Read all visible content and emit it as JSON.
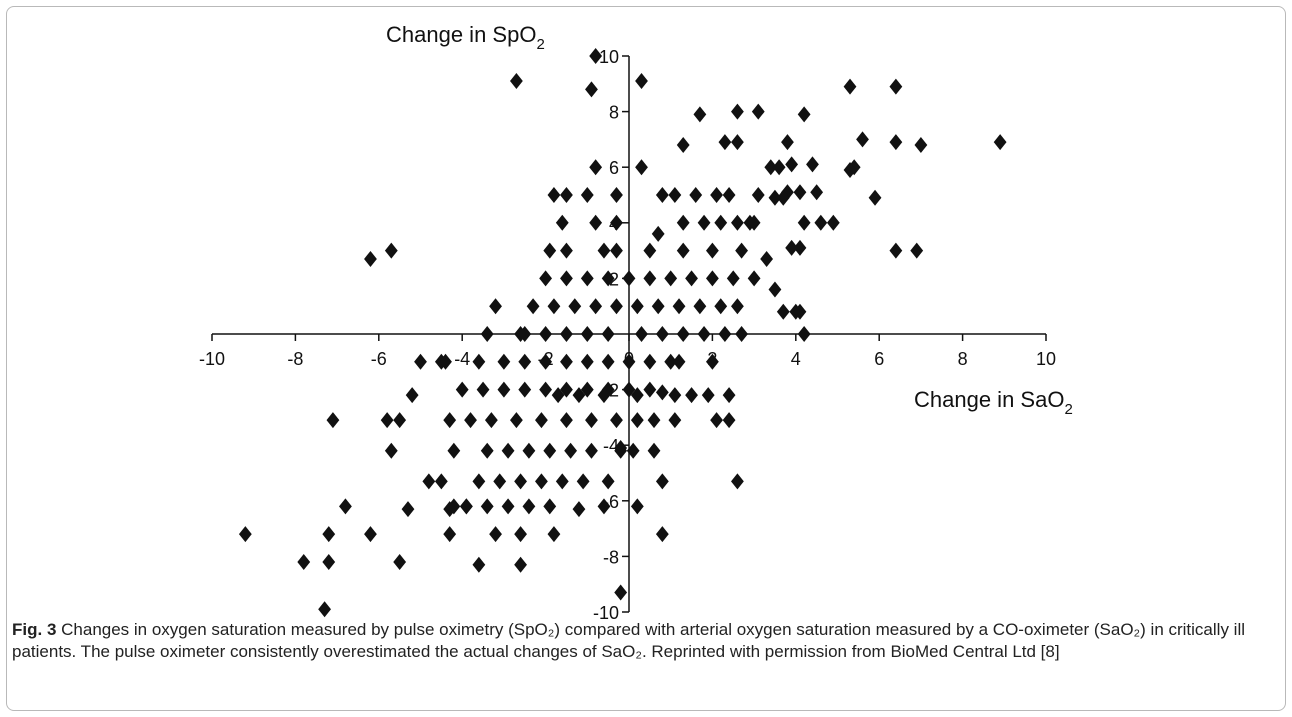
{
  "chart_data": {
    "type": "scatter",
    "marker": "diamond",
    "marker_color": "#111111",
    "xlabel": "Change in SaO",
    "xlabel_sub": "2",
    "ylabel": "Change in SpO",
    "ylabel_sub": "2",
    "xlim": [
      -10,
      10
    ],
    "ylim": [
      -10,
      10
    ],
    "x_ticks": [
      -10,
      -8,
      -6,
      -4,
      -2,
      0,
      2,
      4,
      6,
      8,
      10
    ],
    "y_ticks": [
      -10,
      -8,
      -6,
      -4,
      -2,
      0,
      2,
      4,
      6,
      8,
      10
    ],
    "points": [
      [
        -2.7,
        9.1
      ],
      [
        -0.8,
        10
      ],
      [
        -0.9,
        8.8
      ],
      [
        0.3,
        9.1
      ],
      [
        -0.8,
        6
      ],
      [
        0.3,
        6
      ],
      [
        -5.7,
        3
      ],
      [
        -9.2,
        -7.2
      ],
      [
        -7.3,
        -9.9
      ],
      [
        -7.8,
        -8.2
      ],
      [
        -7.2,
        -8.2
      ],
      [
        -6.2,
        2.7
      ],
      [
        -7.1,
        -3.1
      ],
      [
        -7.2,
        -7.2
      ],
      [
        -6.8,
        -6.2
      ],
      [
        -6.2,
        -7.2
      ],
      [
        -5.5,
        -8.2
      ],
      [
        -5.3,
        -6.3
      ],
      [
        -5.8,
        -3.1
      ],
      [
        -5.5,
        -3.1
      ],
      [
        -5.7,
        -4.2
      ],
      [
        -5,
        -1
      ],
      [
        -4.5,
        -1
      ],
      [
        -5.2,
        -2.2
      ],
      [
        -4.3,
        -3.1
      ],
      [
        -4.8,
        -5.3
      ],
      [
        -4.5,
        -5.3
      ],
      [
        -4.2,
        -4.2
      ],
      [
        -4.3,
        -6.3
      ],
      [
        -4.3,
        -7.2
      ],
      [
        -4.2,
        -6.2
      ],
      [
        -3.9,
        -6.2
      ],
      [
        -3.6,
        -8.3
      ],
      [
        -2.6,
        -8.3
      ],
      [
        -3.2,
        -7.2
      ],
      [
        -2.6,
        -7.2
      ],
      [
        -1.8,
        -7.2
      ],
      [
        -3.2,
        1
      ],
      [
        -3.4,
        0
      ],
      [
        -2.5,
        0
      ],
      [
        -1.8,
        5
      ],
      [
        -1.6,
        4
      ],
      [
        -1.5,
        3
      ],
      [
        -1.9,
        3
      ],
      [
        -1.5,
        5
      ],
      [
        -1,
        5
      ],
      [
        -0.3,
        5
      ],
      [
        -0.3,
        4
      ],
      [
        -0.8,
        4
      ],
      [
        0.7,
        3.6
      ],
      [
        1.3,
        6.8
      ],
      [
        1.7,
        7.9
      ],
      [
        2.3,
        6.9
      ],
      [
        2.6,
        8
      ],
      [
        3.1,
        8
      ],
      [
        2.6,
        6.9
      ],
      [
        3.8,
        6.9
      ],
      [
        4.2,
        7.9
      ],
      [
        3.4,
        6
      ],
      [
        3.6,
        6
      ],
      [
        3.9,
        6.1
      ],
      [
        4.4,
        6.1
      ],
      [
        4.1,
        5.1
      ],
      [
        4.5,
        5.1
      ],
      [
        3.8,
        5.1
      ],
      [
        3.7,
        4.9
      ],
      [
        3.5,
        4.9
      ],
      [
        3,
        4
      ],
      [
        4.2,
        4
      ],
      [
        4.6,
        4
      ],
      [
        4.1,
        3.1
      ],
      [
        3.9,
        3.1
      ],
      [
        3.3,
        2.7
      ],
      [
        3.5,
        1.6
      ],
      [
        3.7,
        0.8
      ],
      [
        4,
        0.8
      ],
      [
        4.1,
        0.8
      ],
      [
        4.2,
        0
      ],
      [
        5.3,
        8.9
      ],
      [
        6.4,
        8.9
      ],
      [
        5.6,
        7
      ],
      [
        6.4,
        6.9
      ],
      [
        7,
        6.8
      ],
      [
        8.9,
        6.9
      ],
      [
        5.4,
        6
      ],
      [
        5.3,
        5.9
      ],
      [
        5.9,
        4.9
      ],
      [
        4.9,
        4
      ],
      [
        6.4,
        3
      ],
      [
        6.9,
        3
      ],
      [
        -0.6,
        3
      ],
      [
        -0.3,
        3
      ],
      [
        0.5,
        3
      ],
      [
        1.3,
        3
      ],
      [
        2,
        3
      ],
      [
        2.7,
        3
      ],
      [
        1.3,
        4
      ],
      [
        1.8,
        4
      ],
      [
        2.2,
        4
      ],
      [
        2.6,
        4
      ],
      [
        2.9,
        4
      ],
      [
        0.8,
        5
      ],
      [
        1.1,
        5
      ],
      [
        1.6,
        5
      ],
      [
        2.1,
        5
      ],
      [
        2.4,
        5
      ],
      [
        3.1,
        5
      ],
      [
        -2,
        2
      ],
      [
        -1.5,
        2
      ],
      [
        -1,
        2
      ],
      [
        -0.5,
        2
      ],
      [
        0,
        2
      ],
      [
        0.5,
        2
      ],
      [
        1,
        2
      ],
      [
        1.5,
        2
      ],
      [
        2,
        2
      ],
      [
        2.5,
        2
      ],
      [
        3,
        2
      ],
      [
        -2.3,
        1
      ],
      [
        -1.8,
        1
      ],
      [
        -1.3,
        1
      ],
      [
        -0.8,
        1
      ],
      [
        -0.3,
        1
      ],
      [
        0.2,
        1
      ],
      [
        0.7,
        1
      ],
      [
        1.2,
        1
      ],
      [
        1.7,
        1
      ],
      [
        2.2,
        1
      ],
      [
        2.6,
        1
      ],
      [
        -2.6,
        0
      ],
      [
        -2,
        0
      ],
      [
        -1.5,
        0
      ],
      [
        -1,
        0
      ],
      [
        -0.5,
        0
      ],
      [
        0.3,
        0
      ],
      [
        0.8,
        0
      ],
      [
        1.3,
        0
      ],
      [
        1.8,
        0
      ],
      [
        2.3,
        0
      ],
      [
        2.7,
        0
      ],
      [
        -4.4,
        -1
      ],
      [
        -3.6,
        -1
      ],
      [
        -3,
        -1
      ],
      [
        -2.5,
        -1
      ],
      [
        -2,
        -1
      ],
      [
        -1.5,
        -1
      ],
      [
        -1,
        -1
      ],
      [
        -0.5,
        -1
      ],
      [
        0,
        -1
      ],
      [
        0.5,
        -1
      ],
      [
        1,
        -1
      ],
      [
        -4,
        -2
      ],
      [
        -3.5,
        -2
      ],
      [
        -3,
        -2
      ],
      [
        -2.5,
        -2
      ],
      [
        -2,
        -2
      ],
      [
        -1.5,
        -2
      ],
      [
        -1,
        -2
      ],
      [
        -0.5,
        -2
      ],
      [
        0,
        -2
      ],
      [
        0.5,
        -2
      ],
      [
        -1.7,
        -2.2
      ],
      [
        -1.2,
        -2.2
      ],
      [
        -0.6,
        -2.2
      ],
      [
        0.2,
        -2.2
      ],
      [
        1.1,
        -2.2
      ],
      [
        1.5,
        -2.2
      ],
      [
        2.4,
        -2.2
      ],
      [
        -3.8,
        -3.1
      ],
      [
        -3.3,
        -3.1
      ],
      [
        -2.7,
        -3.1
      ],
      [
        -2.1,
        -3.1
      ],
      [
        -1.5,
        -3.1
      ],
      [
        -0.9,
        -3.1
      ],
      [
        -0.3,
        -3.1
      ],
      [
        0.2,
        -3.1
      ],
      [
        0.6,
        -3.1
      ],
      [
        1.1,
        -3.1
      ],
      [
        2.1,
        -3.1
      ],
      [
        2.4,
        -3.1
      ],
      [
        -3.4,
        -4.2
      ],
      [
        -2.9,
        -4.2
      ],
      [
        -2.4,
        -4.2
      ],
      [
        -1.9,
        -4.2
      ],
      [
        -1.4,
        -4.2
      ],
      [
        -0.9,
        -4.2
      ],
      [
        -0.2,
        -4.2
      ],
      [
        0.6,
        -4.2
      ],
      [
        -3.6,
        -5.3
      ],
      [
        -3.1,
        -5.3
      ],
      [
        -2.6,
        -5.3
      ],
      [
        -2.1,
        -5.3
      ],
      [
        -1.6,
        -5.3
      ],
      [
        -1.1,
        -5.3
      ],
      [
        -0.5,
        -5.3
      ],
      [
        0.8,
        -5.3
      ],
      [
        2.6,
        -5.3
      ],
      [
        -3.9,
        -6.2
      ],
      [
        -3.4,
        -6.2
      ],
      [
        -2.9,
        -6.2
      ],
      [
        -2.4,
        -6.2
      ],
      [
        -1.9,
        -6.2
      ],
      [
        -1.2,
        -6.3
      ],
      [
        -0.6,
        -6.2
      ],
      [
        0.2,
        -6.2
      ],
      [
        1.9,
        -2.2
      ],
      [
        2,
        -1
      ],
      [
        1.2,
        -1
      ],
      [
        0.8,
        -2.1
      ],
      [
        -0.2,
        -9.3
      ],
      [
        0.8,
        -7.2
      ],
      [
        -0.2,
        -4.1
      ],
      [
        0.1,
        -4.2
      ]
    ]
  },
  "caption": {
    "label": "Fig. 3",
    "text": " Changes in oxygen saturation measured by pulse oximetry (SpO₂) compared with arterial oxygen saturation measured by a CO-oximeter (SaO₂) in critically ill patients. The pulse oximeter consistently overestimated the actual changes of SaO₂. Reprinted with permission from BioMed Central Ltd [8]"
  }
}
